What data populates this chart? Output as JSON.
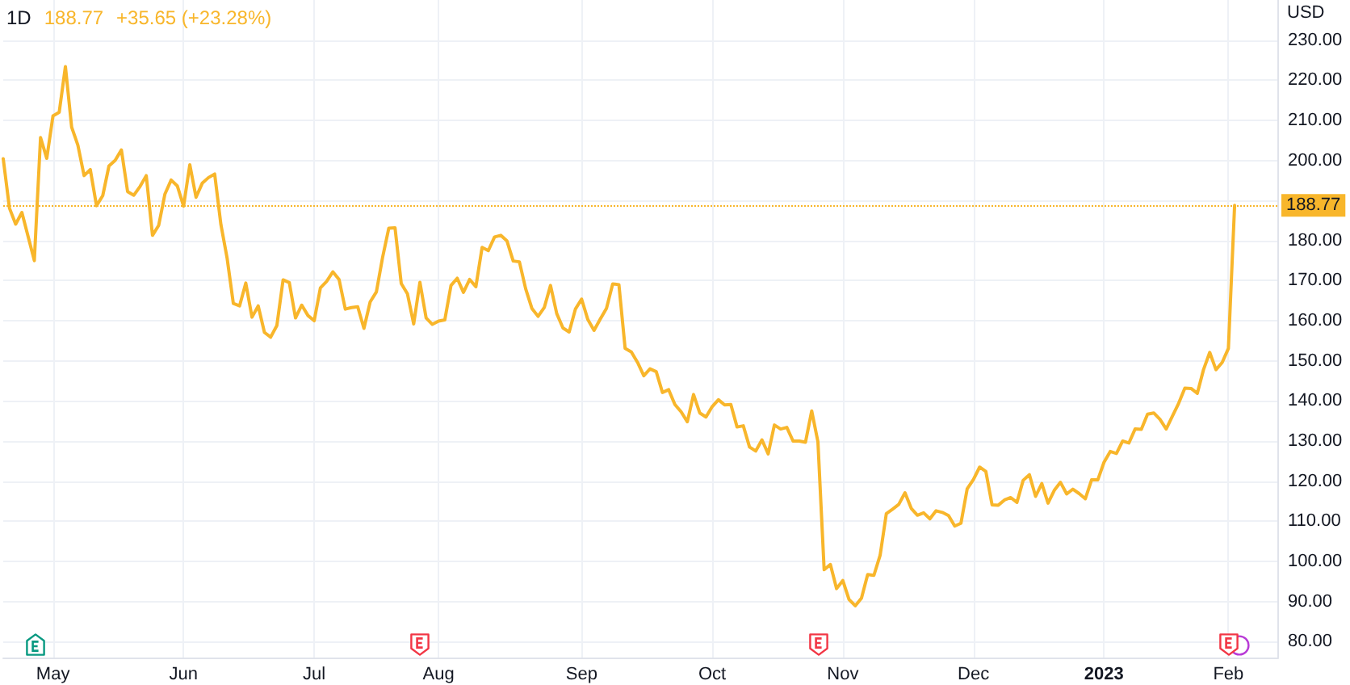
{
  "chart_data": {
    "type": "line",
    "title": "1D",
    "annotations": [
      "188.77",
      "+35.65 (+23.28%)"
    ],
    "ylabel": "USD",
    "categories": [
      null,
      null,
      null,
      null,
      null,
      null,
      null,
      null,
      "May",
      null,
      null,
      null,
      null,
      null,
      null,
      null,
      null,
      null,
      null,
      null,
      null,
      null,
      null,
      null,
      null,
      null,
      null,
      null,
      null,
      "Jun",
      null,
      null,
      null,
      null,
      null,
      null,
      null,
      null,
      null,
      null,
      null,
      null,
      null,
      null,
      null,
      null,
      null,
      null,
      null,
      null,
      "Jul",
      null,
      null,
      null,
      null,
      null,
      null,
      null,
      null,
      null,
      null,
      null,
      null,
      null,
      null,
      null,
      null,
      null,
      null,
      null,
      "Aug",
      null,
      null,
      null,
      null,
      null,
      null,
      null,
      null,
      null,
      null,
      null,
      null,
      null,
      null,
      null,
      null,
      null,
      null,
      null,
      null,
      null,
      null,
      "Sep",
      null,
      null,
      null,
      null,
      null,
      null,
      null,
      null,
      null,
      null,
      null,
      null,
      null,
      null,
      null,
      null,
      null,
      null,
      null,
      null,
      "Oct",
      null,
      null,
      null,
      null,
      null,
      null,
      null,
      null,
      null,
      null,
      null,
      null,
      null,
      null,
      null,
      null,
      null,
      null,
      null,
      null,
      "Nov",
      null,
      null,
      null,
      null,
      null,
      null,
      null,
      null,
      null,
      null,
      null,
      null,
      null,
      null,
      null,
      null,
      null,
      null,
      null,
      null,
      "Dec",
      null,
      null,
      null,
      null,
      null,
      null,
      null,
      null,
      null,
      null,
      null,
      null,
      null,
      null,
      null,
      null,
      null,
      null,
      null,
      null,
      "2023",
      null,
      null,
      null,
      null,
      null,
      null,
      null,
      null,
      null,
      null,
      null,
      null,
      null,
      null,
      null,
      null,
      null,
      null,
      null,
      "Feb",
      null,
      null,
      null,
      null,
      null,
      null,
      null,
      null
    ],
    "values": [
      200.4,
      188.1,
      184.1,
      187.0,
      181.0,
      175.0,
      205.7,
      200.5,
      211.1,
      212.0,
      223.4,
      208.3,
      203.8,
      196.2,
      197.7,
      188.7,
      191.2,
      198.6,
      200.0,
      202.6,
      192.2,
      191.3,
      193.5,
      196.2,
      181.3,
      183.8,
      191.6,
      195.1,
      193.6,
      188.6,
      198.9,
      190.8,
      194.3,
      195.7,
      196.6,
      184.0,
      175.6,
      164.3,
      163.7,
      169.4,
      160.9,
      163.7,
      157.1,
      155.9,
      158.8,
      170.2,
      169.5,
      160.7,
      163.9,
      161.3,
      160.0,
      168.2,
      169.8,
      172.2,
      170.3,
      162.9,
      163.3,
      163.5,
      158.1,
      164.7,
      167.2,
      175.8,
      183.1,
      183.2,
      169.3,
      166.7,
      159.2,
      169.6,
      160.7,
      159.1,
      159.9,
      160.2,
      168.8,
      170.6,
      167.1,
      170.3,
      168.5,
      178.3,
      177.5,
      180.9,
      181.3,
      179.9,
      174.9,
      174.7,
      168.0,
      163.1,
      161.1,
      163.3,
      168.8,
      161.8,
      158.2,
      157.2,
      162.9,
      165.4,
      160.3,
      157.6,
      160.4,
      163.1,
      169.2,
      169.0,
      153.1,
      152.2,
      149.6,
      146.3,
      148.0,
      147.3,
      142.1,
      142.8,
      139.1,
      137.3,
      134.8,
      141.6,
      137.0,
      136.0,
      138.6,
      140.3,
      139.0,
      139.1,
      133.5,
      133.8,
      128.5,
      127.5,
      130.3,
      126.8,
      134.0,
      133.0,
      133.4,
      130.0,
      130.0,
      129.7,
      137.5,
      129.8,
      97.9,
      99.2,
      93.2,
      95.2,
      90.5,
      88.9,
      90.8,
      96.7,
      96.5,
      101.5,
      111.9,
      113.0,
      114.2,
      117.1,
      113.2,
      111.5,
      112.1,
      110.6,
      112.6,
      112.2,
      111.4,
      108.8,
      109.5,
      118.1,
      120.4,
      123.5,
      122.4,
      114.1,
      114.0,
      115.3,
      115.9,
      114.7,
      120.2,
      121.6,
      116.2,
      119.4,
      114.5,
      117.7,
      119.7,
      116.8,
      118.0,
      116.9,
      115.6,
      120.3,
      120.3,
      124.7,
      127.4,
      126.9,
      130.0,
      129.5,
      133.0,
      132.9,
      136.7,
      137.0,
      135.4,
      133.0,
      136.2,
      139.4,
      143.2,
      143.1,
      141.9,
      147.8,
      152.1,
      147.8,
      149.6,
      153.1,
      188.77,
      null,
      null,
      null,
      null,
      null,
      null,
      null
    ],
    "color": "#f8b62b",
    "ylim": [
      76,
      240
    ],
    "yticks": [
      {
        "value": 80,
        "label": "80.00"
      },
      {
        "value": 90,
        "label": "90.00"
      },
      {
        "value": 100,
        "label": "100.00"
      },
      {
        "value": 110,
        "label": "110.00"
      },
      {
        "value": 120,
        "label": "120.00"
      },
      {
        "value": 130,
        "label": "130.00"
      },
      {
        "value": 140,
        "label": "140.00"
      },
      {
        "value": 150,
        "label": "150.00"
      },
      {
        "value": 160,
        "label": "160.00"
      },
      {
        "value": 170,
        "label": "170.00"
      },
      {
        "value": 180,
        "label": "180.00"
      },
      {
        "value": 190,
        "label": null
      },
      {
        "value": 200,
        "label": "200.00"
      },
      {
        "value": 210,
        "label": "210.00"
      },
      {
        "value": 220,
        "label": "220.00"
      },
      {
        "value": 230,
        "label": "230.00"
      }
    ],
    "ref_lines": [
      {
        "axis": "y",
        "value": 188.77,
        "label": "188.77",
        "color": "#f8b62b",
        "line_style": "dotted"
      }
    ],
    "grid": true,
    "marker": "none",
    "line_style": "solid"
  }
}
